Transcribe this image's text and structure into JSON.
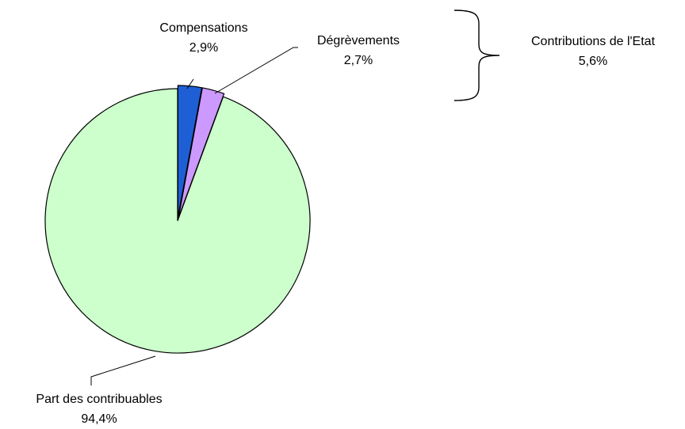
{
  "chart_data": {
    "type": "pie",
    "title": "",
    "slices": [
      {
        "name": "Compensations",
        "value": 2.9,
        "label": "2,9%",
        "color": "#1F5FD6"
      },
      {
        "name": "Dégrèvements",
        "value": 2.7,
        "label": "2,7%",
        "color": "#CC99FF"
      },
      {
        "name": "Part des contribuables",
        "value": 94.4,
        "label": "94,4%",
        "color": "#CCFFCC"
      }
    ],
    "group": {
      "name": "Contributions de l'Etat",
      "label": "5,6%",
      "members": [
        "Compensations",
        "Dégrèvements"
      ]
    },
    "legend": "none"
  }
}
